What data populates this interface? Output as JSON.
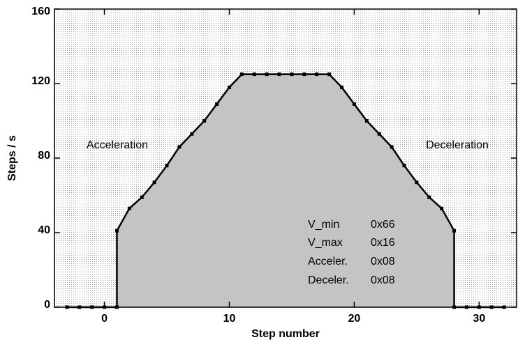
{
  "chart_data": {
    "type": "line",
    "xlabel": "Step number",
    "ylabel": "Steps / s",
    "x": [
      -3,
      -2,
      -1,
      0,
      1,
      1,
      2,
      3,
      4,
      5,
      6,
      7,
      8,
      9,
      10,
      11,
      12,
      13,
      14,
      15,
      16,
      17,
      18,
      19,
      20,
      21,
      22,
      23,
      24,
      25,
      26,
      27,
      28,
      28,
      29,
      30,
      31,
      32
    ],
    "series": [
      {
        "color": "#000000",
        "fill": "#c4c4c4",
        "values": [
          0,
          0,
          0,
          0,
          0,
          41,
          53,
          59,
          67,
          76,
          86,
          93,
          100,
          109,
          118,
          125,
          125,
          125,
          125,
          125,
          125,
          125,
          125,
          118,
          109,
          100,
          93,
          86,
          76,
          67,
          59,
          53,
          41,
          0,
          0,
          0,
          0,
          0
        ]
      }
    ],
    "xlim": [
      -4,
      33
    ],
    "ylim": [
      0,
      160
    ],
    "xticks": [
      0,
      10,
      20,
      30
    ],
    "yticks": [
      0,
      40,
      80,
      120,
      160
    ],
    "annotations": [
      "Acceleration",
      "Deceleration"
    ],
    "settings_table": [
      [
        "V_min",
        "0x66"
      ],
      [
        "V_max",
        "0x16"
      ],
      [
        "Acceler.",
        "0x08"
      ],
      [
        "Deceler.",
        "0x08"
      ]
    ]
  }
}
